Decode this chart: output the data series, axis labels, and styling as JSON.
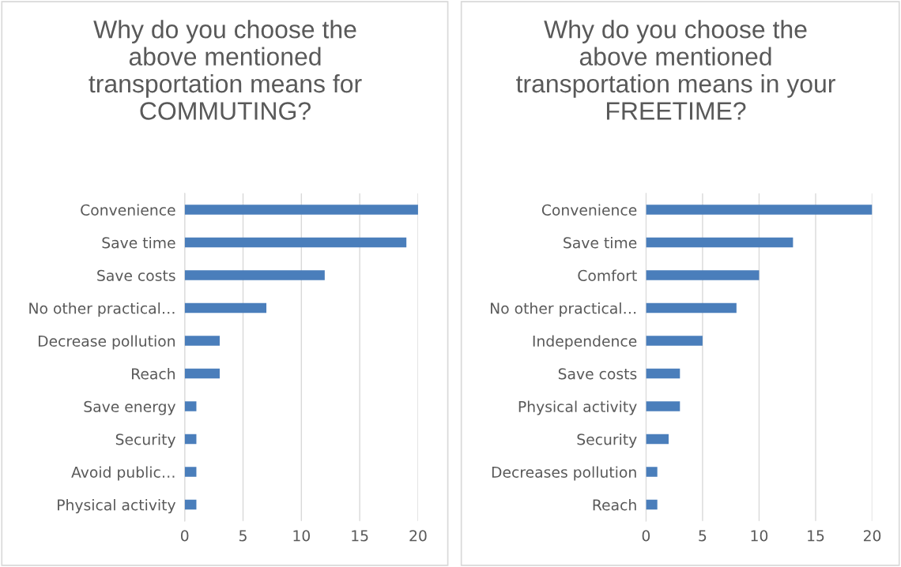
{
  "chart_data": [
    {
      "type": "bar",
      "orientation": "horizontal",
      "title": "Why do you choose the above mentioned transportation means for COMMUTING?",
      "categories": [
        "Convenience",
        "Save time",
        "Save costs",
        "No other practical…",
        "Decrease pollution",
        "Reach",
        "Save energy",
        "Security",
        "Avoid public…",
        "Physical activity"
      ],
      "values": [
        20,
        19,
        12,
        7,
        3,
        3,
        1,
        1,
        1,
        1
      ],
      "color": "#4a7ebb",
      "xlim": [
        0,
        20
      ],
      "xticks": [
        0,
        5,
        10,
        15,
        20
      ],
      "grid": "x",
      "legend": false
    },
    {
      "type": "bar",
      "orientation": "horizontal",
      "title": "Why do you choose the above mentioned transportation means in your FREETIME?",
      "categories": [
        "Convenience",
        "Save time",
        "Comfort",
        "No other practical…",
        "Independence",
        "Save costs",
        "Physical activity",
        "Security",
        "Decreases pollution",
        "Reach"
      ],
      "values": [
        20,
        13,
        10,
        8,
        5,
        3,
        3,
        2,
        1,
        1
      ],
      "color": "#4a7ebb",
      "xlim": [
        0,
        20
      ],
      "xticks": [
        0,
        5,
        10,
        15,
        20
      ],
      "grid": "x",
      "legend": false
    }
  ]
}
